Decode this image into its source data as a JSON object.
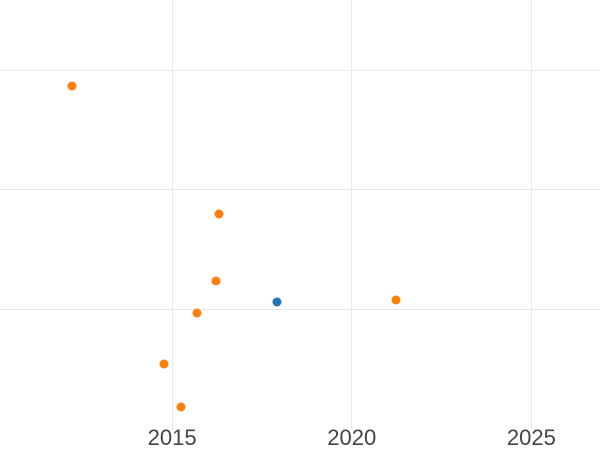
{
  "chart_data": {
    "type": "scatter",
    "title": "",
    "xlabel": "",
    "ylabel": "",
    "x_ticks": [
      2015,
      2020,
      2025
    ],
    "x_tick_labels": [
      "2015",
      "2020",
      "2025"
    ],
    "xlim": [
      2010.21,
      2026.91
    ],
    "ylim": [
      -0.97,
      2.59
    ],
    "y_gridlines": [
      0,
      1,
      2
    ],
    "y_axis_labels_visible": false,
    "grid": true,
    "legend": "none",
    "marker_diameter_px": 9,
    "series": [
      {
        "id": "series-1",
        "color": "#ff7f0e",
        "marker": "circle",
        "points": [
          {
            "x": 2012.22,
            "y": 1.87
          },
          {
            "x": 2014.78,
            "y": -0.46
          },
          {
            "x": 2015.24,
            "y": -0.82
          },
          {
            "x": 2015.7,
            "y": -0.03
          },
          {
            "x": 2016.21,
            "y": 0.24
          },
          {
            "x": 2016.31,
            "y": 0.8
          },
          {
            "x": 2021.23,
            "y": 0.08
          }
        ]
      },
      {
        "id": "series-2",
        "color": "#1f77b4",
        "marker": "circle",
        "points": [
          {
            "x": 2017.92,
            "y": 0.06
          }
        ]
      }
    ]
  },
  "colors": {
    "background": "#ffffff",
    "gridline": "#e8e8e8",
    "tick": "#e0e0e0",
    "tick_label": "#444444"
  }
}
